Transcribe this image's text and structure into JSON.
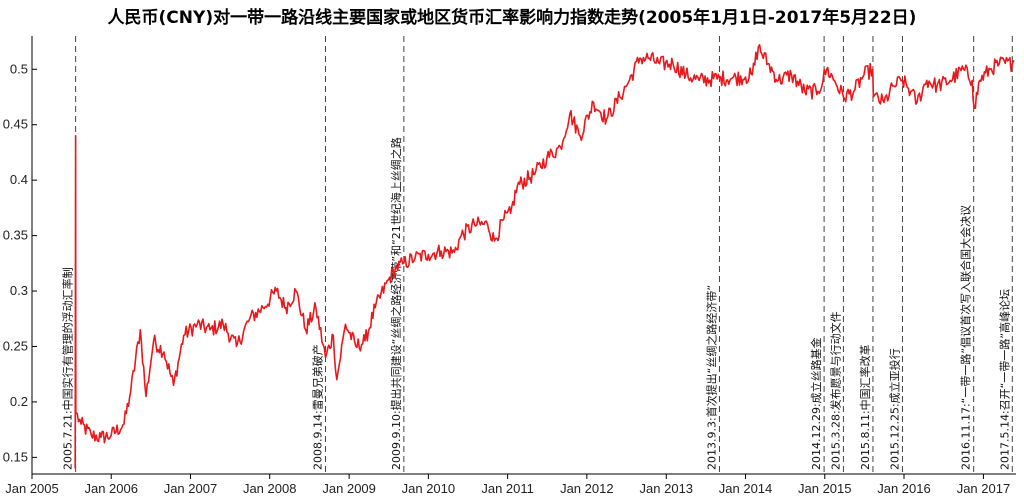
{
  "chart_data": {
    "type": "line",
    "title": "人民币(CNY)对一带一路沿线主要国家或地区货币汇率影响力指数走势(2005年1月1日-2017年5月22日)",
    "xlabel": "",
    "ylabel": "",
    "xlim": [
      "2005-01-01",
      "2017-05-31"
    ],
    "ylim": [
      0.135,
      0.53
    ],
    "grid": false,
    "x_ticks": [
      "Jan 2005",
      "Jan 2006",
      "Jan 2007",
      "Jan 2008",
      "Jan 2009",
      "Jan 2010",
      "Jan 2011",
      "Jan 2012",
      "Jan 2013",
      "Jan 2014",
      "Jan 2015",
      "Jan 2016",
      "Jan 2017"
    ],
    "y_ticks": [
      "0.15",
      "0.2",
      "0.25",
      "0.3",
      "0.35",
      "0.4",
      "0.45",
      "0.5"
    ],
    "line_color": "#e8191c",
    "series": [
      {
        "name": "",
        "points": [
          [
            "2005-07-19",
            0.14
          ],
          [
            "2005-07-21",
            0.44
          ],
          [
            "2005-07-22",
            0.19
          ],
          [
            "2005-08-15",
            0.18
          ],
          [
            "2005-10-01",
            0.17
          ],
          [
            "2005-11-15",
            0.168
          ],
          [
            "2006-01-01",
            0.17
          ],
          [
            "2006-03-01",
            0.18
          ],
          [
            "2006-04-01",
            0.21
          ],
          [
            "2006-05-15",
            0.265
          ],
          [
            "2006-06-10",
            0.205
          ],
          [
            "2006-07-15",
            0.255
          ],
          [
            "2006-09-01",
            0.245
          ],
          [
            "2006-10-15",
            0.215
          ],
          [
            "2006-12-01",
            0.26
          ],
          [
            "2007-02-01",
            0.27
          ],
          [
            "2007-04-01",
            0.265
          ],
          [
            "2007-06-01",
            0.27
          ],
          [
            "2007-08-01",
            0.25
          ],
          [
            "2007-10-01",
            0.275
          ],
          [
            "2007-12-01",
            0.285
          ],
          [
            "2008-02-01",
            0.3
          ],
          [
            "2008-03-15",
            0.285
          ],
          [
            "2008-05-01",
            0.3
          ],
          [
            "2008-06-15",
            0.265
          ],
          [
            "2008-08-01",
            0.285
          ],
          [
            "2008-09-14",
            0.24
          ],
          [
            "2008-10-20",
            0.26
          ],
          [
            "2008-11-05",
            0.22
          ],
          [
            "2008-12-15",
            0.27
          ],
          [
            "2009-02-01",
            0.25
          ],
          [
            "2009-03-15",
            0.255
          ],
          [
            "2009-05-01",
            0.285
          ],
          [
            "2009-07-01",
            0.31
          ],
          [
            "2009-08-01",
            0.32
          ],
          [
            "2009-09-10",
            0.325
          ],
          [
            "2009-11-01",
            0.33
          ],
          [
            "2010-01-01",
            0.333
          ],
          [
            "2010-03-01",
            0.336
          ],
          [
            "2010-05-01",
            0.335
          ],
          [
            "2010-06-01",
            0.35
          ],
          [
            "2010-08-01",
            0.36
          ],
          [
            "2010-10-01",
            0.36
          ],
          [
            "2010-11-01",
            0.345
          ],
          [
            "2010-12-15",
            0.365
          ],
          [
            "2011-01-15",
            0.37
          ],
          [
            "2011-02-15",
            0.395
          ],
          [
            "2011-05-01",
            0.405
          ],
          [
            "2011-07-01",
            0.42
          ],
          [
            "2011-09-01",
            0.43
          ],
          [
            "2011-10-15",
            0.46
          ],
          [
            "2011-12-01",
            0.44
          ],
          [
            "2012-02-01",
            0.47
          ],
          [
            "2012-04-01",
            0.455
          ],
          [
            "2012-06-01",
            0.475
          ],
          [
            "2012-07-15",
            0.49
          ],
          [
            "2012-09-01",
            0.51
          ],
          [
            "2012-10-15",
            0.51
          ],
          [
            "2012-12-01",
            0.505
          ],
          [
            "2013-02-01",
            0.505
          ],
          [
            "2013-04-01",
            0.495
          ],
          [
            "2013-06-01",
            0.49
          ],
          [
            "2013-09-03",
            0.492
          ],
          [
            "2013-11-01",
            0.492
          ],
          [
            "2014-01-01",
            0.493
          ],
          [
            "2014-02-01",
            0.495
          ],
          [
            "2014-03-01",
            0.52
          ],
          [
            "2014-04-15",
            0.505
          ],
          [
            "2014-06-01",
            0.49
          ],
          [
            "2014-08-01",
            0.495
          ],
          [
            "2014-10-01",
            0.48
          ],
          [
            "2014-12-01",
            0.48
          ],
          [
            "2015-01-10",
            0.5
          ],
          [
            "2015-02-15",
            0.49
          ],
          [
            "2015-03-28",
            0.475
          ],
          [
            "2015-05-15",
            0.48
          ],
          [
            "2015-07-01",
            0.495
          ],
          [
            "2015-08-10",
            0.5
          ],
          [
            "2015-08-13",
            0.475
          ],
          [
            "2015-10-01",
            0.47
          ],
          [
            "2015-11-15",
            0.485
          ],
          [
            "2015-12-25",
            0.49
          ],
          [
            "2016-02-01",
            0.48
          ],
          [
            "2016-03-01",
            0.47
          ],
          [
            "2016-04-15",
            0.49
          ],
          [
            "2016-06-01",
            0.485
          ],
          [
            "2016-08-01",
            0.49
          ],
          [
            "2016-10-01",
            0.5
          ],
          [
            "2016-11-10",
            0.49
          ],
          [
            "2016-11-20",
            0.465
          ],
          [
            "2016-12-15",
            0.49
          ],
          [
            "2017-02-01",
            0.5
          ],
          [
            "2017-03-15",
            0.505
          ],
          [
            "2017-05-14",
            0.505
          ],
          [
            "2017-05-22",
            0.508
          ]
        ]
      }
    ],
    "events": [
      {
        "date": "2005-07-21",
        "label": "2005.7.21:中国实行有管理的浮动汇率制"
      },
      {
        "date": "2008-09-14",
        "label": "2008.9.14:雷曼兄弟破产"
      },
      {
        "date": "2009-09-10",
        "label": "2009.9.10:提出共同建设“丝绸之路经济带”和“21世纪海上丝绸之路"
      },
      {
        "date": "2013-09-03",
        "label": "2013.9.3:首次提出“丝绸之路经济带”"
      },
      {
        "date": "2014-12-29",
        "label": "2014.12.29:成立丝路基金"
      },
      {
        "date": "2015-03-28",
        "label": "2015.3.28:发布愿景与行动文件"
      },
      {
        "date": "2015-08-11",
        "label": "2015.8.11:中国汇率改革"
      },
      {
        "date": "2015-12-25",
        "label": "2015.12.25:成立亚投行"
      },
      {
        "date": "2016-11-17",
        "label": "2016.11.17:“一带一路”倡议首次写入联合国大会决议"
      },
      {
        "date": "2017-05-14",
        "label": "2017.5.14:召开“一带一路”高峰论坛"
      }
    ]
  }
}
